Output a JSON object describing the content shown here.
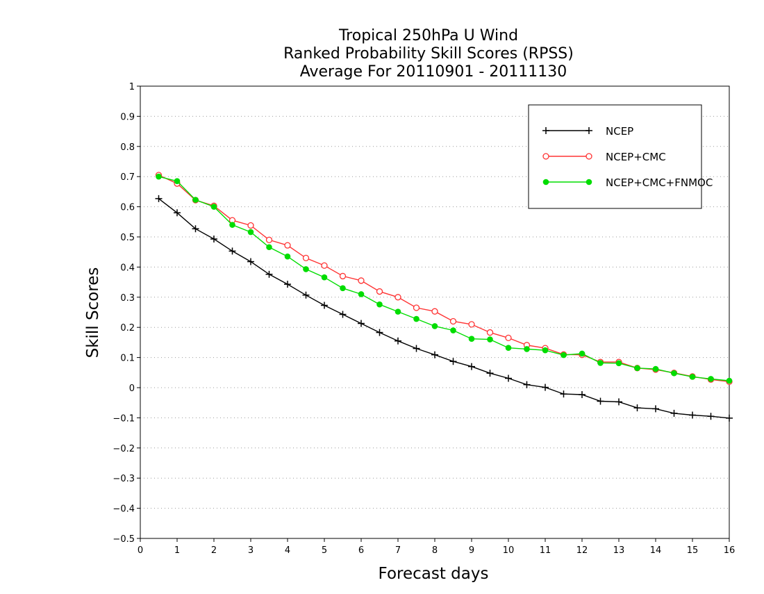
{
  "chart_data": {
    "type": "line",
    "title_lines": [
      "Tropical 250hPa U Wind",
      "Ranked Probability Skill Scores (RPSS)",
      "Average For 20110901 - 20111130"
    ],
    "xlabel": "Forecast days",
    "ylabel": "Skill Scores",
    "xlim": [
      0,
      16
    ],
    "ylim": [
      -0.5,
      1
    ],
    "x_ticks": [
      0,
      1,
      2,
      3,
      4,
      5,
      6,
      7,
      8,
      9,
      10,
      11,
      12,
      13,
      14,
      15,
      16
    ],
    "y_ticks": [
      -0.5,
      -0.4,
      -0.3,
      -0.2,
      -0.1,
      0,
      0.1,
      0.2,
      0.3,
      0.4,
      0.5,
      0.6,
      0.7,
      0.8,
      0.9,
      1
    ],
    "y_tick_labels": [
      "−0.5",
      "−0.4",
      "−0.3",
      "−0.2",
      "−0.1",
      "0",
      "0.1",
      "0.2",
      "0.3",
      "0.4",
      "0.5",
      "0.6",
      "0.7",
      "0.8",
      "0.9",
      "1"
    ],
    "grid": "horizontal dotted",
    "legend_position": "top-right",
    "x": [
      0.5,
      1,
      1.5,
      2,
      2.5,
      3,
      3.5,
      4,
      4.5,
      5,
      5.5,
      6,
      6.5,
      7,
      7.5,
      8,
      8.5,
      9,
      9.5,
      10,
      10.5,
      11,
      11.5,
      12,
      12.5,
      13,
      13.5,
      14,
      14.5,
      15,
      15.5,
      16
    ],
    "series": [
      {
        "name": "NCEP",
        "color": "#000000",
        "marker": "plus",
        "values": [
          0.627,
          0.58,
          0.527,
          0.493,
          0.453,
          0.418,
          0.376,
          0.343,
          0.307,
          0.273,
          0.243,
          0.213,
          0.183,
          0.155,
          0.13,
          0.109,
          0.087,
          0.07,
          0.048,
          0.031,
          0.01,
          0.001,
          -0.021,
          -0.023,
          -0.045,
          -0.047,
          -0.067,
          -0.07,
          -0.085,
          -0.091,
          -0.095,
          -0.101
        ]
      },
      {
        "name": "NCEP+CMC",
        "color": "#ff3333",
        "marker": "open-circle",
        "values": [
          0.705,
          0.677,
          0.622,
          0.603,
          0.555,
          0.538,
          0.49,
          0.472,
          0.43,
          0.405,
          0.37,
          0.355,
          0.319,
          0.3,
          0.265,
          0.253,
          0.22,
          0.21,
          0.183,
          0.165,
          0.141,
          0.131,
          0.11,
          0.109,
          0.085,
          0.085,
          0.065,
          0.06,
          0.049,
          0.037,
          0.027,
          0.02
        ]
      },
      {
        "name": "NCEP+CMC+FNMOC",
        "color": "#00dd00",
        "marker": "filled-circle",
        "values": [
          0.7,
          0.685,
          0.623,
          0.6,
          0.54,
          0.516,
          0.466,
          0.435,
          0.393,
          0.366,
          0.33,
          0.31,
          0.276,
          0.252,
          0.228,
          0.204,
          0.19,
          0.162,
          0.16,
          0.132,
          0.128,
          0.124,
          0.108,
          0.113,
          0.082,
          0.081,
          0.065,
          0.062,
          0.048,
          0.036,
          0.029,
          0.023
        ]
      }
    ]
  }
}
